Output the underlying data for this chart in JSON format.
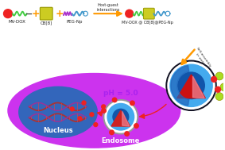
{
  "bg_color": "#ffffff",
  "nucleus_label": "Nucleus",
  "endosome_label": "Endosome",
  "ph_label": "pH = 5.0",
  "self_assembly_label": "Self-assembly\nin water",
  "host_guest_label": "Host-guest\ninteractions",
  "mv_dox_label": "MV-DOX",
  "cb8_label": "CB[8]",
  "peg_np_label": "PEG-Np",
  "product_label": "MV-DOX @ CB[8]@PEG-Np",
  "colors": {
    "red_dot": "#ee2222",
    "green_chain": "#44cc44",
    "yellow_cube": "#cccc22",
    "yellow_cube_edge": "#999900",
    "purple_chain": "#aa33cc",
    "blue_chain": "#4499cc",
    "orange_arrow": "#ff9900",
    "cell_purple": "#cc33ee",
    "nucleus_blue": "#3366cc",
    "endosome_gray": "#999999",
    "endosome_white": "#ffffff",
    "endosome_cyan": "#44aaee",
    "endosome_dark_blue": "#1155aa",
    "endosome_red": "#cc2222",
    "endosome_pink": "#ee6677",
    "micelle_black": "#111122",
    "micelle_white": "#ffffff",
    "micelle_cyan": "#44aaee",
    "micelle_dark": "#1155aa",
    "micelle_red": "#cc1111",
    "cyan_arrow": "#55bbdd",
    "green_ball": "#aadd22",
    "dna_color1": "#aa3333",
    "dna_color2": "#993399"
  }
}
